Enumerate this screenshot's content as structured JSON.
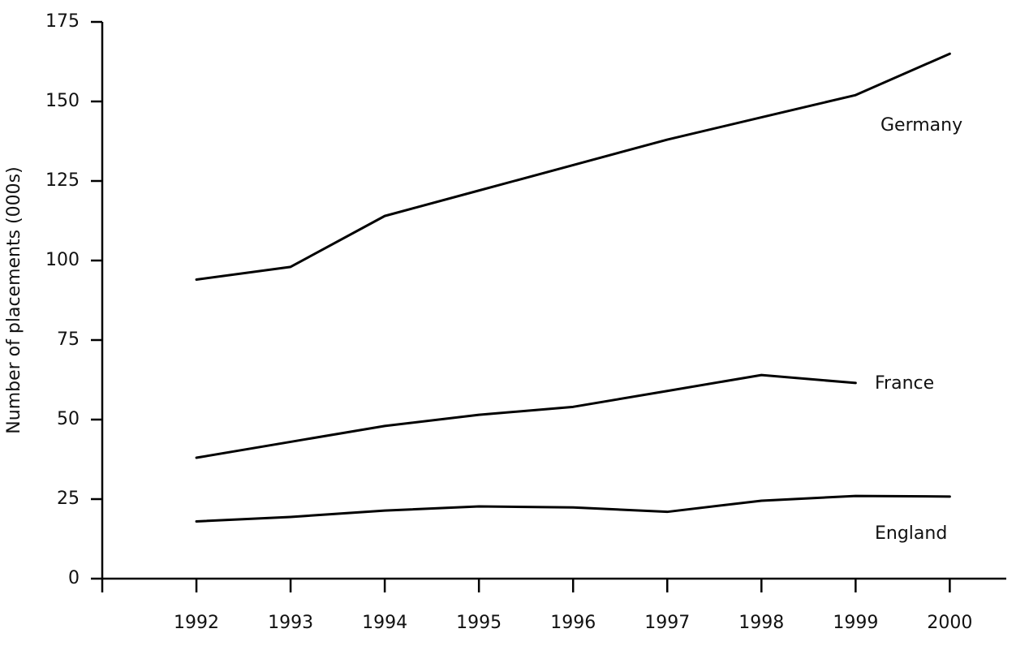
{
  "chart_data": {
    "type": "line",
    "y_label": "Number of placements (000s)",
    "x": [
      1992,
      1993,
      1994,
      1995,
      1996,
      1997,
      1998,
      1999,
      2000
    ],
    "xlim": [
      1991,
      2000.6
    ],
    "xticks": [
      1992,
      1993,
      1994,
      1995,
      1996,
      1997,
      1998,
      1999,
      2000
    ],
    "ylim": [
      0,
      175
    ],
    "yticks": [
      0,
      25,
      50,
      75,
      100,
      125,
      150,
      175
    ],
    "grid": false,
    "series": [
      {
        "name": "Germany",
        "color": "#000000",
        "values": [
          94,
          98,
          114,
          122,
          130,
          138,
          145,
          152,
          165
        ]
      },
      {
        "name": "France",
        "color": "#000000",
        "values": [
          38,
          43,
          48,
          51.5,
          54,
          59,
          64,
          61.5,
          null
        ]
      },
      {
        "name": "England",
        "color": "#000000",
        "values": [
          18,
          19.4,
          21.4,
          22.7,
          22.4,
          21,
          24.5,
          26,
          25.8
        ]
      }
    ]
  }
}
